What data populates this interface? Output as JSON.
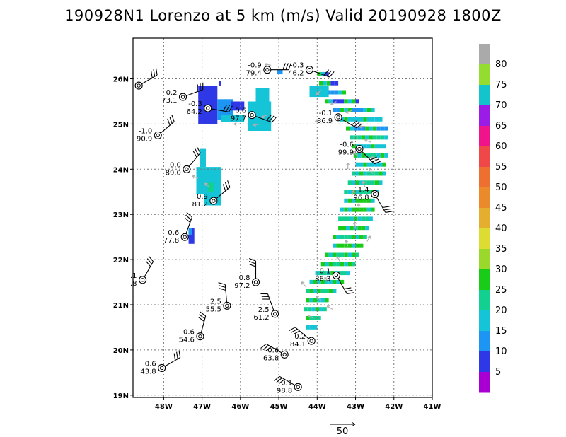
{
  "title": "190928N1 Lorenzo at 5 km (m/s) Valid 20190928 1800Z",
  "map": {
    "lon_range": [
      -48.8,
      -41.0
    ],
    "lat_range": [
      18.95,
      26.9
    ],
    "lon_ticks": [
      {
        "value": -48,
        "label": "48W"
      },
      {
        "value": -47,
        "label": "47W"
      },
      {
        "value": -46,
        "label": "46W"
      },
      {
        "value": -45,
        "label": "45W"
      },
      {
        "value": -44,
        "label": "44W"
      },
      {
        "value": -43,
        "label": "43W"
      },
      {
        "value": -42,
        "label": "42W"
      },
      {
        "value": -41,
        "label": "41W"
      }
    ],
    "lat_ticks": [
      {
        "value": 19,
        "label": "19N"
      },
      {
        "value": 20,
        "label": "20N"
      },
      {
        "value": 21,
        "label": "21N"
      },
      {
        "value": 22,
        "label": "22N"
      },
      {
        "value": 23,
        "label": "23N"
      },
      {
        "value": 24,
        "label": "24N"
      },
      {
        "value": 25,
        "label": "25N"
      },
      {
        "value": 26,
        "label": "26N"
      }
    ],
    "grid": "dotted"
  },
  "colorbar": {
    "levels": [
      {
        "label": "5",
        "color": "#a800d2"
      },
      {
        "label": "10",
        "color": "#2f38e6"
      },
      {
        "label": "15",
        "color": "#1c96f2"
      },
      {
        "label": "20",
        "color": "#15c4d6"
      },
      {
        "label": "25",
        "color": "#12d08f"
      },
      {
        "label": "30",
        "color": "#18cc18"
      },
      {
        "label": "35",
        "color": "#9ad82b"
      },
      {
        "label": "40",
        "color": "#dcdc33"
      },
      {
        "label": "45",
        "color": "#e6ae2f"
      },
      {
        "label": "50",
        "color": "#ea8a2b"
      },
      {
        "label": "55",
        "color": "#ee7030"
      },
      {
        "label": "60",
        "color": "#f04848"
      },
      {
        "label": "65",
        "color": "#f0148c"
      },
      {
        "label": "70",
        "color": "#9a1ce6"
      },
      {
        "label": "75",
        "color": "#14c4cc"
      },
      {
        "label": "80",
        "color": "#94dc30"
      }
    ],
    "top_color": "#aaaaaa"
  },
  "reference_vector": {
    "label": "50"
  },
  "stations": [
    {
      "lon": -48.65,
      "lat": 25.85,
      "t": "",
      "s": ""
    },
    {
      "lon": -47.5,
      "lat": 25.6,
      "t": "0.2",
      "s": "73.1"
    },
    {
      "lon": -46.85,
      "lat": 25.35,
      "t": "-0.3",
      "s": "64.2"
    },
    {
      "lon": -45.7,
      "lat": 25.2,
      "t": "0.6",
      "s": "97.7"
    },
    {
      "lon": -45.3,
      "lat": 26.2,
      "t": "-0.9",
      "s": "79.4"
    },
    {
      "lon": -44.2,
      "lat": 26.2,
      "t": "-0.3",
      "s": "46.2"
    },
    {
      "lon": -43.45,
      "lat": 25.15,
      "t": "-0.1",
      "s": "86.9"
    },
    {
      "lon": -48.15,
      "lat": 24.75,
      "t": "-1.0",
      "s": "90.9"
    },
    {
      "lon": -47.4,
      "lat": 24.0,
      "t": "0.0",
      "s": "89.0"
    },
    {
      "lon": -42.9,
      "lat": 24.45,
      "t": "-0.6",
      "s": "99.9"
    },
    {
      "lon": -46.7,
      "lat": 23.3,
      "t": "0.9",
      "s": "81.2"
    },
    {
      "lon": -42.5,
      "lat": 23.45,
      "t": "-1.4",
      "s": "96.8"
    },
    {
      "lon": -47.45,
      "lat": 22.5,
      "t": "0.6",
      "s": "77.8"
    },
    {
      "lon": -48.55,
      "lat": 21.55,
      "t": ".1",
      "s": ".8"
    },
    {
      "lon": -43.5,
      "lat": 21.65,
      "t": "0.1",
      "s": "86.3"
    },
    {
      "lon": -45.6,
      "lat": 21.5,
      "t": "0.8",
      "s": "97.2"
    },
    {
      "lon": -46.35,
      "lat": 20.98,
      "t": "2.5",
      "s": "55.5"
    },
    {
      "lon": -45.1,
      "lat": 20.8,
      "t": "2.5",
      "s": "61.2"
    },
    {
      "lon": -44.15,
      "lat": 20.2,
      "t": "0.2",
      "s": "84.1"
    },
    {
      "lon": -47.05,
      "lat": 20.3,
      "t": "0.6",
      "s": "54.6"
    },
    {
      "lon": -44.85,
      "lat": 19.9,
      "t": "0.6",
      "s": "63.8"
    },
    {
      "lon": -48.05,
      "lat": 19.6,
      "t": "0.6",
      "s": "43.8"
    },
    {
      "lon": -44.5,
      "lat": 19.18,
      "t": "0.1",
      "s": "98.8"
    }
  ]
}
